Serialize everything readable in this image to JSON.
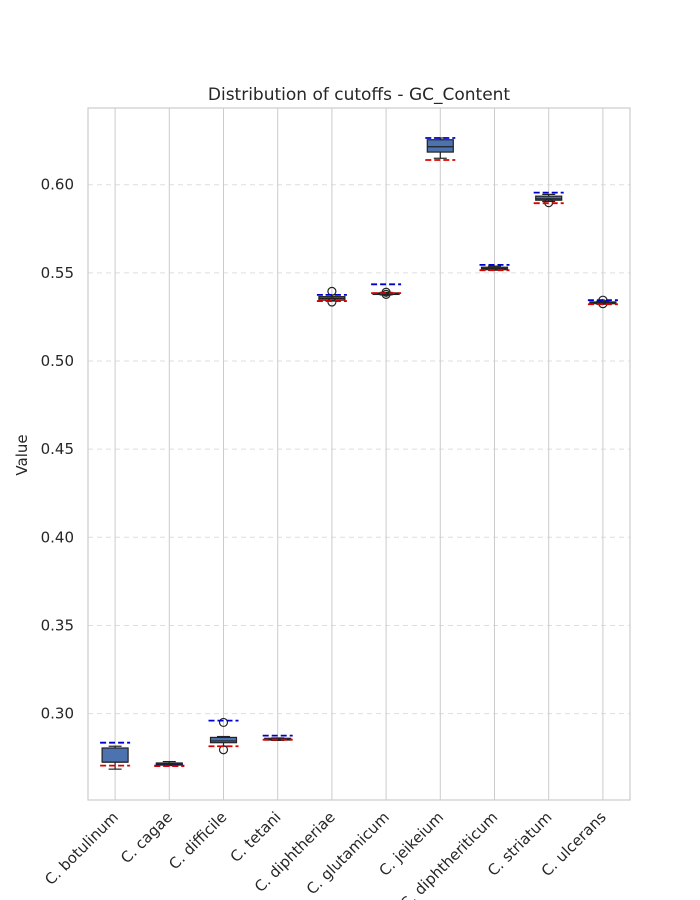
{
  "chart_data": {
    "type": "box",
    "title": "Distribution of cutoffs - GC_Content",
    "xlabel": "",
    "ylabel": "Value",
    "ylim": [
      0.251,
      0.6435
    ],
    "yticks": [
      0.3,
      0.35,
      0.4,
      0.45,
      0.5,
      0.55,
      0.6
    ],
    "ytick_labels": [
      "0.30",
      "0.35",
      "0.40",
      "0.45",
      "0.50",
      "0.55",
      "0.60"
    ],
    "grid": true,
    "box_color": "#4c72b0",
    "upper_line_color": "#0000cc",
    "lower_line_color": "#dd0000",
    "categories": [
      "C. botulinum",
      "C. cagae",
      "C. difficile",
      "C. tetani",
      "C. diphtheriae",
      "C. glutamicum",
      "C. jeikeium",
      "C. diphtheriticum",
      "C. striatum",
      "C. ulcerans"
    ],
    "boxes": [
      {
        "whisker_low": 0.2685,
        "q1": 0.2725,
        "median": 0.2725,
        "q3": 0.2805,
        "whisker_high": 0.2815,
        "outliers": [],
        "upper_line": 0.2835,
        "lower_line": 0.2705
      },
      {
        "whisker_low": 0.2705,
        "q1": 0.2708,
        "median": 0.2715,
        "q3": 0.272,
        "whisker_high": 0.2728,
        "outliers": [],
        "upper_line": 0.2705,
        "lower_line": 0.2702
      },
      {
        "whisker_low": 0.2815,
        "q1": 0.2835,
        "median": 0.2845,
        "q3": 0.2865,
        "whisker_high": 0.287,
        "outliers": [
          0.2795,
          0.295
        ],
        "upper_line": 0.296,
        "lower_line": 0.2815
      },
      {
        "whisker_low": 0.2848,
        "q1": 0.285,
        "median": 0.2855,
        "q3": 0.286,
        "whisker_high": 0.2862,
        "outliers": [],
        "upper_line": 0.2875,
        "lower_line": 0.2852
      },
      {
        "whisker_low": 0.534,
        "q1": 0.5345,
        "median": 0.5355,
        "q3": 0.5365,
        "whisker_high": 0.5375,
        "outliers": [
          0.5335,
          0.5395
        ],
        "upper_line": 0.5375,
        "lower_line": 0.534
      },
      {
        "whisker_low": 0.5375,
        "q1": 0.5378,
        "median": 0.5382,
        "q3": 0.5386,
        "whisker_high": 0.5389,
        "outliers": [
          0.5378,
          0.539
        ],
        "upper_line": 0.5435,
        "lower_line": 0.5385
      },
      {
        "whisker_low": 0.615,
        "q1": 0.6185,
        "median": 0.6215,
        "q3": 0.6255,
        "whisker_high": 0.6265,
        "outliers": [],
        "upper_line": 0.6265,
        "lower_line": 0.614
      },
      {
        "whisker_low": 0.5515,
        "q1": 0.5518,
        "median": 0.5525,
        "q3": 0.5532,
        "whisker_high": 0.5538,
        "outliers": [],
        "upper_line": 0.5545,
        "lower_line": 0.5515
      },
      {
        "whisker_low": 0.5905,
        "q1": 0.5912,
        "median": 0.592,
        "q3": 0.5935,
        "whisker_high": 0.5945,
        "outliers": [
          0.5898
        ],
        "upper_line": 0.5955,
        "lower_line": 0.5895
      },
      {
        "whisker_low": 0.5322,
        "q1": 0.5325,
        "median": 0.533,
        "q3": 0.5335,
        "whisker_high": 0.534,
        "outliers": [
          0.5325,
          0.5345
        ],
        "upper_line": 0.5345,
        "lower_line": 0.5322
      }
    ]
  }
}
